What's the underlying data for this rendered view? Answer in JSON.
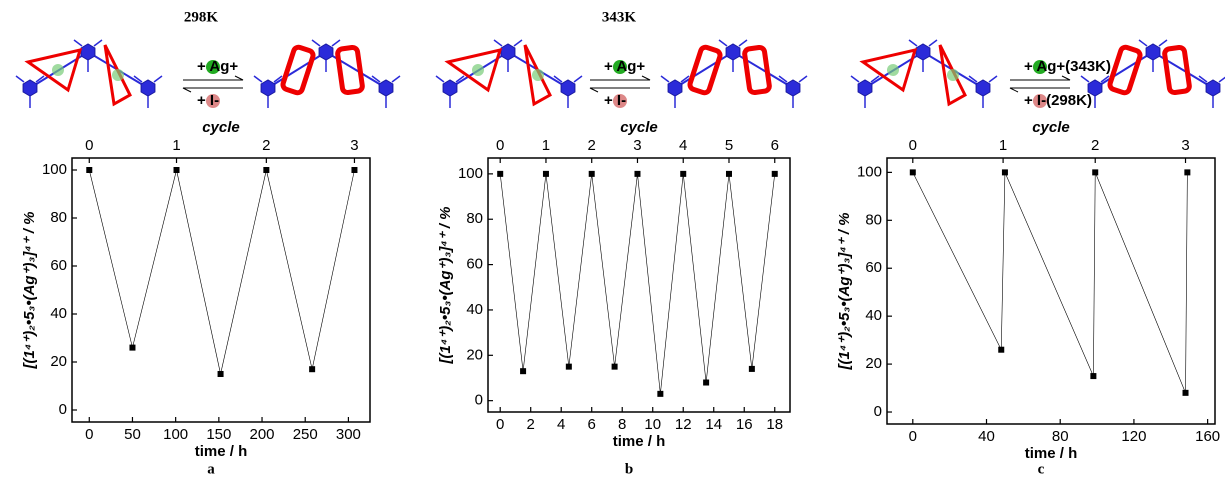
{
  "chart_data": [
    {
      "type": "line",
      "title": "298K",
      "forward_label": "+ Ag+",
      "reverse_label": "+ I-",
      "x2label": "cycle",
      "xlabel": "time / h",
      "ylabel": "[(1⁴⁺)₂•5₃•(Ag⁺)₃]⁴⁺ / %",
      "panel": "a",
      "x": [
        0,
        50,
        101,
        152,
        205,
        258,
        307
      ],
      "values": [
        100,
        26,
        100,
        15,
        100,
        17,
        100
      ],
      "color": "#000000",
      "xlim": [
        -20,
        325
      ],
      "xticks": [
        0,
        50,
        100,
        150,
        200,
        250,
        300
      ],
      "x2ticks": [
        {
          "value": 0,
          "label": "0"
        },
        {
          "value": 101,
          "label": "1"
        },
        {
          "value": 205,
          "label": "2"
        },
        {
          "value": 307,
          "label": "3"
        }
      ],
      "ylim": [
        -5,
        105
      ],
      "yticks": [
        0,
        20,
        40,
        60,
        80,
        100
      ]
    },
    {
      "type": "line",
      "title": "343K",
      "forward_label": "+ Ag+",
      "reverse_label": "+ I-",
      "x2label": "cycle",
      "xlabel": "time / h",
      "ylabel": "[(1⁴⁺)₂•5₃•(Ag⁺)₃]⁴⁺ / %",
      "panel": "b",
      "x": [
        0,
        1.5,
        3,
        4.5,
        6,
        7.5,
        9,
        10.5,
        12,
        13.5,
        15,
        16.5,
        18
      ],
      "values": [
        100,
        13,
        100,
        15,
        100,
        15,
        100,
        3,
        100,
        8,
        100,
        14,
        100
      ],
      "color": "#000000",
      "xlim": [
        -0.8,
        19
      ],
      "xticks": [
        0,
        2,
        4,
        6,
        8,
        10,
        12,
        14,
        16,
        18
      ],
      "x2ticks": [
        {
          "value": 0,
          "label": "0"
        },
        {
          "value": 3,
          "label": "1"
        },
        {
          "value": 6,
          "label": "2"
        },
        {
          "value": 9,
          "label": "3"
        },
        {
          "value": 12,
          "label": "4"
        },
        {
          "value": 15,
          "label": "5"
        },
        {
          "value": 18,
          "label": "6"
        }
      ],
      "ylim": [
        -5,
        107
      ],
      "yticks": [
        0,
        20,
        40,
        60,
        80,
        100
      ]
    },
    {
      "type": "line",
      "forward_label": "+ Ag+(343K)",
      "reverse_label": "+ I-(298K)",
      "x2label": "cycle",
      "xlabel": "time / h",
      "ylabel": "[(1⁴⁺)₂•5₃•(Ag⁺)₃]⁴⁺ / %",
      "panel": "c",
      "x": [
        0,
        48,
        50,
        98,
        99,
        148,
        149
      ],
      "values": [
        100,
        26,
        100,
        15,
        100,
        8,
        100
      ],
      "color": "#000000",
      "xlim": [
        -14,
        164
      ],
      "xticks": [
        0,
        40,
        80,
        120,
        160
      ],
      "x2ticks": [
        {
          "value": 0,
          "label": "0"
        },
        {
          "value": 49,
          "label": "1"
        },
        {
          "value": 99,
          "label": "2"
        },
        {
          "value": 148,
          "label": "3"
        }
      ],
      "ylim": [
        -5,
        106
      ],
      "yticks": [
        0,
        20,
        40,
        60,
        80,
        100
      ]
    }
  ]
}
